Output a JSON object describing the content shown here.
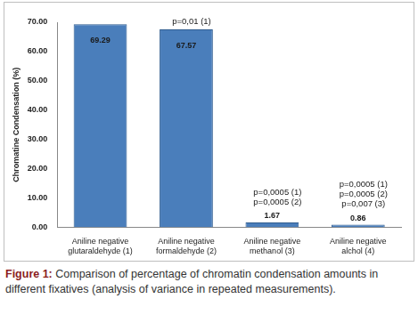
{
  "chart_data": {
    "type": "bar",
    "categories": [
      "Aniline negative glutaraldehyde (1)",
      "Aniline negative formaldehyde (2)",
      "Aniline negative methanol (3)",
      "Aniline negative alchol (4)"
    ],
    "values": [
      69.29,
      67.57,
      1.67,
      0.86
    ],
    "color": "#4a7ebb",
    "ylabel": "Chromatine Condensation (%)",
    "ylim": [
      0,
      70
    ],
    "yticks": [
      {
        "value": 0,
        "label": "0.00"
      },
      {
        "value": 10,
        "label": "10.00"
      },
      {
        "value": 20,
        "label": "20.00"
      },
      {
        "value": 30,
        "label": "30.00"
      },
      {
        "value": 40,
        "label": "40.00"
      },
      {
        "value": 50,
        "label": "50.00"
      },
      {
        "value": 60,
        "label": "60.00"
      },
      {
        "value": 70,
        "label": "70.00"
      }
    ],
    "grid": false,
    "data_labels": true,
    "annotations": [
      {
        "category": "Aniline negative formaldehyde (2)",
        "lines": [
          "p=0,01 (1)"
        ]
      },
      {
        "category": "Aniline negative methanol (3)",
        "lines": [
          "p=0,0005 (1)",
          "p=0,0005 (2)"
        ]
      },
      {
        "category": "Aniline negative alchol (4)",
        "lines": [
          "p=0,0005 (1)",
          "p=0,0005 (2)",
          "p=0,007 (3)"
        ]
      }
    ]
  },
  "figure": {
    "label": "Figure 1:",
    "caption": "Comparison of percentage of chromatin condensation amounts in different fixatives (analysis of variance in repeated measurements)."
  }
}
